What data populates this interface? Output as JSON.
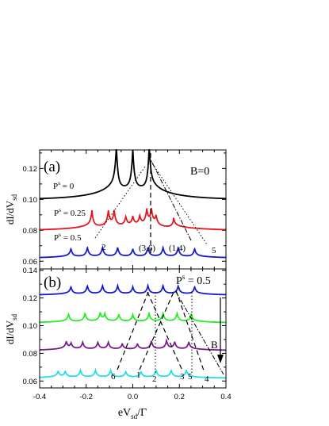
{
  "chart_data": [
    {
      "type": "line",
      "panel_label": "(a)",
      "field_label": "B=0",
      "ylabel_main": "dI/dV",
      "ylabel_sub": "sd",
      "xlim": [
        -0.4,
        0.4
      ],
      "ylim": [
        0.055,
        0.132
      ],
      "yticks": [
        "0.06",
        "0.08",
        "0.10",
        "0.12"
      ],
      "ytick_values": [
        0.06,
        0.08,
        0.1,
        0.12
      ],
      "series": [
        {
          "name": "P",
          "sup": "s",
          "value_text": " = 0",
          "color": "#000000",
          "base": 0.1,
          "edge_ratio": 0.3,
          "peaks": [
            [
              -0.07,
              0.028
            ],
            [
              0.0,
              0.028
            ],
            [
              0.07,
              0.028
            ]
          ]
        },
        {
          "name": "P",
          "sup": "s",
          "value_text": " = 0.25",
          "color": "#e8141c",
          "base": 0.08,
          "edge_ratio": 0.28,
          "peaks": [
            [
              -0.175,
              0.01
            ],
            [
              -0.105,
              0.01
            ],
            [
              -0.08,
              0.01
            ],
            [
              -0.03,
              0.006
            ],
            [
              0.0,
              0.006
            ],
            [
              0.03,
              0.006
            ],
            [
              0.06,
              0.01
            ],
            [
              0.08,
              0.01
            ],
            [
              0.1,
              0.006
            ],
            [
              0.175,
              0.005
            ]
          ]
        },
        {
          "name": "P",
          "sup": "s",
          "value_text": " = 0.5",
          "color": "#1818d0",
          "base": 0.062,
          "edge_ratio": 0.25,
          "peaks": [
            [
              -0.265,
              0.005
            ],
            [
              -0.195,
              0.006
            ],
            [
              -0.13,
              0.006
            ],
            [
              -0.065,
              0.006
            ],
            [
              0.0,
              0.005
            ],
            [
              0.065,
              0.006
            ],
            [
              0.13,
              0.006
            ],
            [
              0.195,
              0.006
            ],
            [
              0.265,
              0.005
            ]
          ]
        }
      ],
      "peak_labels": [
        "2",
        "(3,6)",
        "(1,4)",
        "5"
      ]
    },
    {
      "type": "line",
      "panel_label": "(b)",
      "ps_label": "P",
      "ps_sup": "s",
      "ps_value": " = 0.5",
      "b_label": "B",
      "ylabel_main": "dI/dV",
      "ylabel_sub": "sd",
      "xlabel_main": "eV",
      "xlabel_sub": "sd",
      "xlabel_tail": "/Γ",
      "xlim": [
        -0.4,
        0.4
      ],
      "ylim": [
        0.055,
        0.141
      ],
      "xticks": [
        "-0.4",
        "-0.2",
        "0.0",
        "0.2",
        "0.4"
      ],
      "xtick_values": [
        -0.4,
        -0.2,
        0.0,
        0.2,
        0.4
      ],
      "yticks": [
        "0.06",
        "0.08",
        "0.10",
        "0.12",
        "0.14"
      ],
      "ytick_values": [
        0.06,
        0.08,
        0.1,
        0.12,
        0.14
      ],
      "series": [
        {
          "color": "#1818d0",
          "base": 0.122,
          "edge_ratio": 0.25,
          "peaks": [
            [
              -0.265,
              0.005
            ],
            [
              -0.195,
              0.006
            ],
            [
              -0.13,
              0.006
            ],
            [
              -0.065,
              0.006
            ],
            [
              0.0,
              0.005
            ],
            [
              0.065,
              0.006
            ],
            [
              0.13,
              0.006
            ],
            [
              0.195,
              0.006
            ],
            [
              0.265,
              0.005
            ]
          ]
        },
        {
          "color": "#22ee22",
          "base": 0.102,
          "edge_ratio": 0.25,
          "peaks": [
            [
              -0.275,
              0.005
            ],
            [
              -0.205,
              0.006
            ],
            [
              -0.14,
              0.006
            ],
            [
              -0.12,
              0.005
            ],
            [
              -0.06,
              0.005
            ],
            [
              0.0,
              0.005
            ],
            [
              0.07,
              0.006
            ],
            [
              0.13,
              0.006
            ],
            [
              0.19,
              0.006
            ],
            [
              0.25,
              0.005
            ]
          ]
        },
        {
          "color": "#7a1a8c",
          "base": 0.082,
          "edge_ratio": 0.25,
          "peaks": [
            [
              -0.285,
              0.005
            ],
            [
              -0.265,
              0.004
            ],
            [
              -0.215,
              0.005
            ],
            [
              -0.15,
              0.005
            ],
            [
              -0.105,
              0.005
            ],
            [
              -0.045,
              0.004
            ],
            [
              0.02,
              0.004
            ],
            [
              0.08,
              0.006
            ],
            [
              0.145,
              0.006
            ],
            [
              0.18,
              0.005
            ],
            [
              0.24,
              0.005
            ]
          ]
        },
        {
          "color": "#22dde8",
          "base": 0.062,
          "edge_ratio": 0.25,
          "peaks": [
            [
              -0.32,
              0.004
            ],
            [
              -0.29,
              0.004
            ],
            [
              -0.225,
              0.005
            ],
            [
              -0.16,
              0.005
            ],
            [
              -0.095,
              0.005
            ],
            [
              -0.03,
              0.004
            ],
            [
              0.035,
              0.004
            ],
            [
              0.1,
              0.005
            ],
            [
              0.165,
              0.005
            ],
            [
              0.23,
              0.005
            ]
          ]
        }
      ],
      "peak_labels": [
        "6",
        "1",
        "2",
        "3",
        "5",
        "4"
      ]
    }
  ]
}
